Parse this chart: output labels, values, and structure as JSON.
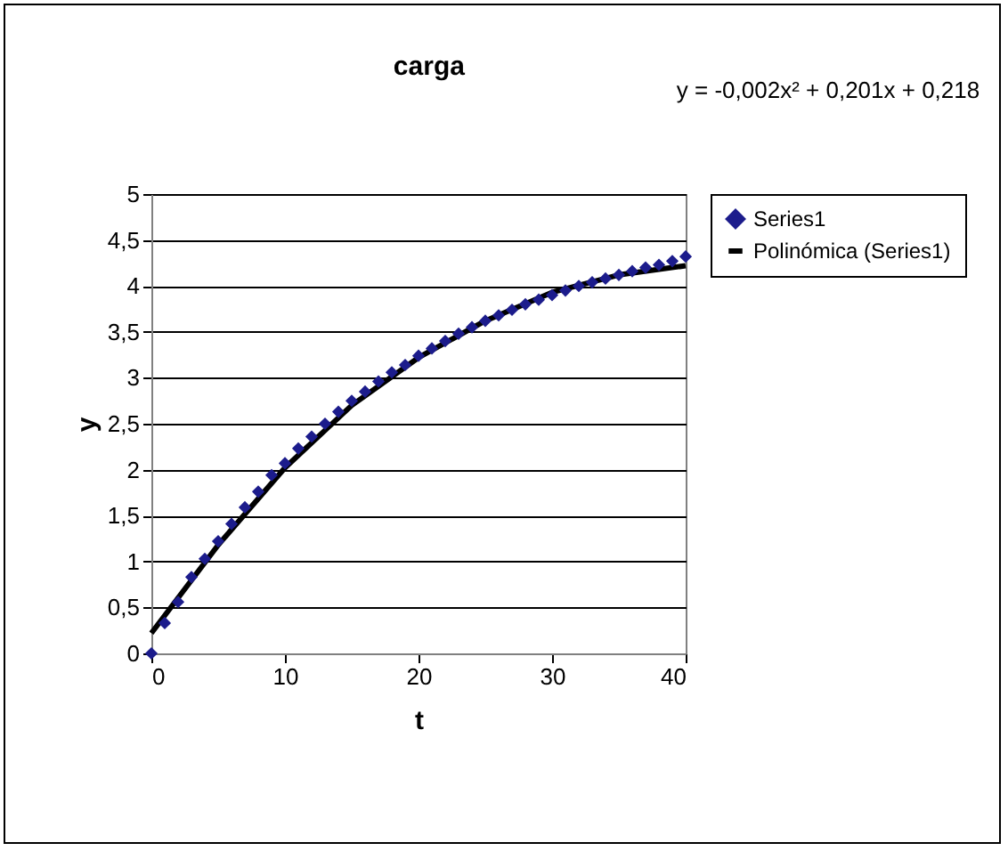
{
  "chart_data": {
    "type": "scatter",
    "title": "carga",
    "xlabel": "t",
    "ylabel": "y",
    "annotations": [
      "y = -0,002x² + 0,201x + 0,218"
    ],
    "x": [
      0,
      1,
      2,
      3,
      4,
      5,
      6,
      7,
      8,
      9,
      10,
      11,
      12,
      13,
      14,
      15,
      16,
      17,
      18,
      19,
      20,
      21,
      22,
      23,
      24,
      25,
      26,
      27,
      28,
      29,
      30,
      31,
      32,
      33,
      34,
      35,
      36,
      37,
      38,
      39,
      40
    ],
    "series": [
      {
        "name": "Series1",
        "color": "#1c1c8c",
        "marker": "diamond",
        "values": [
          0,
          0.33,
          0.56,
          0.83,
          1.03,
          1.22,
          1.41,
          1.59,
          1.76,
          1.94,
          2.07,
          2.23,
          2.36,
          2.5,
          2.63,
          2.75,
          2.85,
          2.96,
          3.06,
          3.14,
          3.24,
          3.32,
          3.4,
          3.48,
          3.55,
          3.62,
          3.68,
          3.74,
          3.8,
          3.85,
          3.9,
          3.95,
          4.0,
          4.04,
          4.08,
          4.12,
          4.16,
          4.2,
          4.23,
          4.27,
          4.32
        ]
      },
      {
        "name": "Polinómica (Series1)",
        "type": "line",
        "color": "#000000",
        "x": [
          0,
          5,
          10,
          15,
          20,
          25,
          30,
          35,
          40
        ],
        "values": [
          0.22,
          1.18,
          2.02,
          2.7,
          3.22,
          3.62,
          3.93,
          4.12,
          4.22
        ]
      }
    ],
    "xlim": [
      0,
      40
    ],
    "xticks": [
      0,
      10,
      20,
      30,
      40
    ],
    "ylim": [
      0,
      5
    ],
    "yticks": [
      0,
      {
        "value": 0.5,
        "label": "0,5"
      },
      1,
      {
        "value": 1.5,
        "label": "1,5"
      },
      2,
      {
        "value": 2.5,
        "label": "2,5"
      },
      3,
      {
        "value": 3.5,
        "label": "3,5"
      },
      4,
      {
        "value": 4.5,
        "label": "4,5"
      },
      5
    ],
    "grid": "y",
    "legend": "right"
  }
}
